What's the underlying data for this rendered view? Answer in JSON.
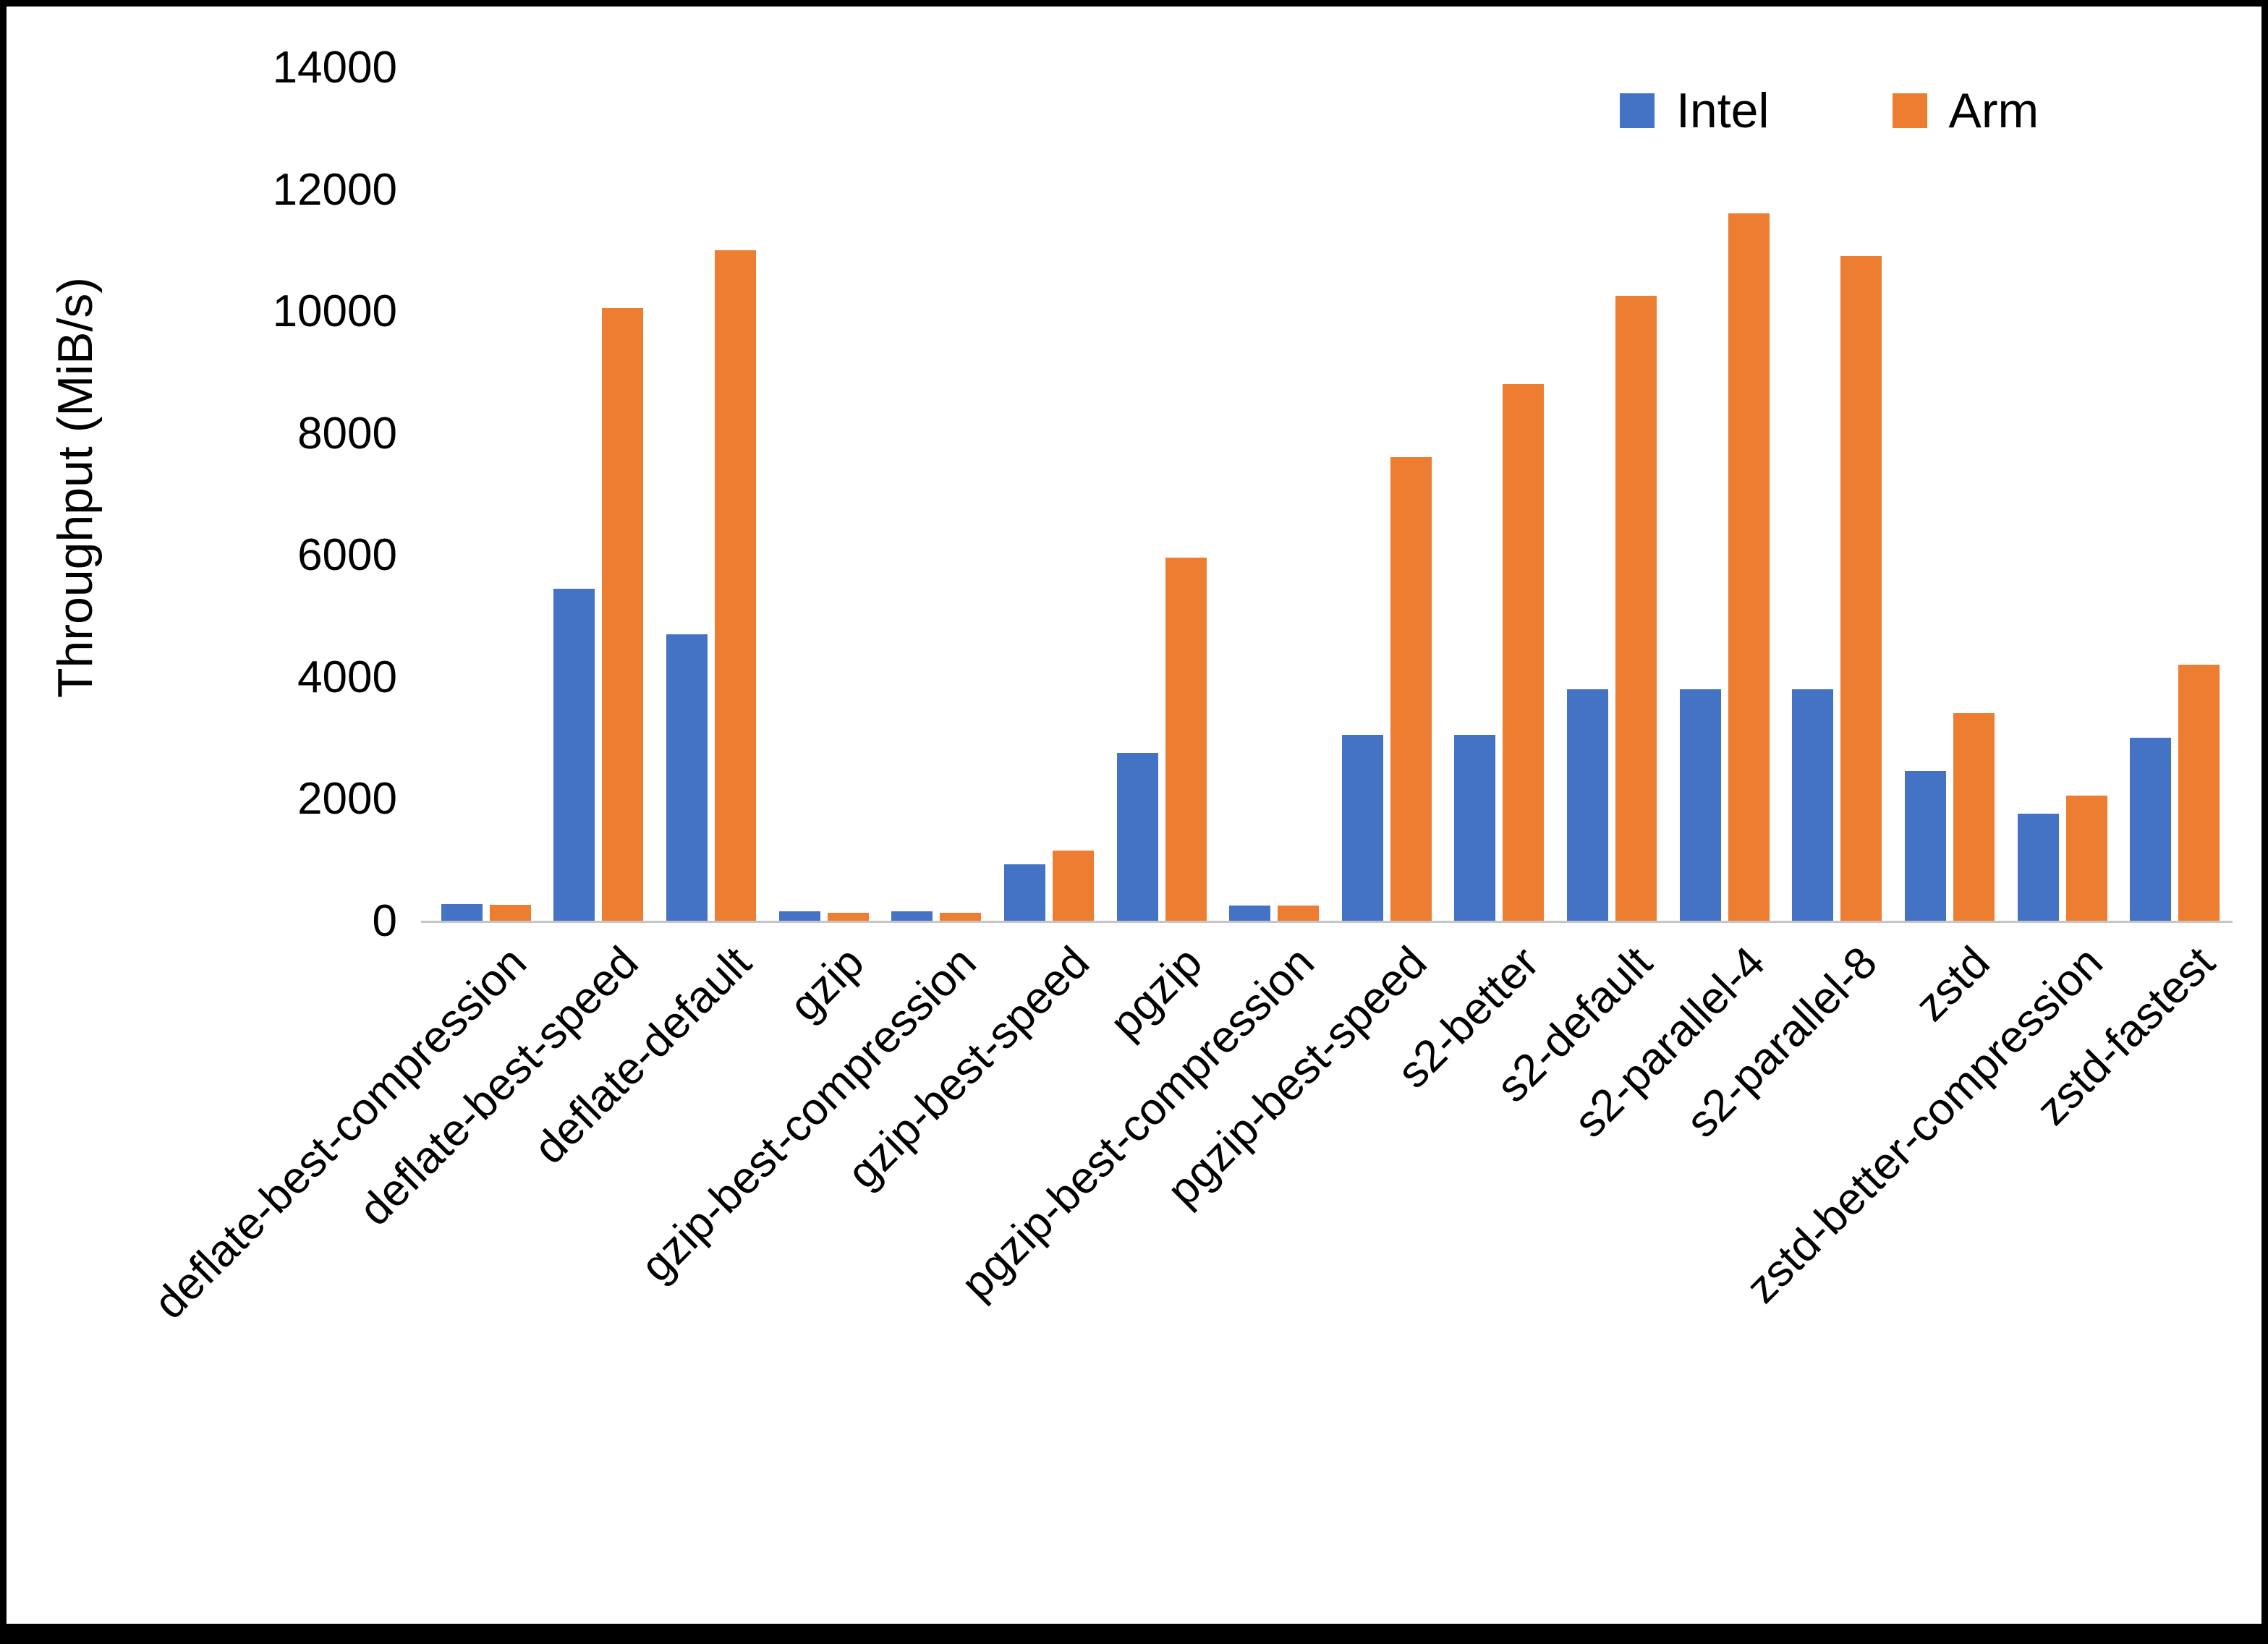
{
  "chart_data": {
    "type": "bar",
    "title": "",
    "xlabel": "",
    "ylabel": "Throughput (MiB/s)",
    "ylim": [
      0,
      14000
    ],
    "ytick_step": 2000,
    "grid": false,
    "legend_position": "top-right",
    "categories": [
      "deflate-best-compression",
      "deflate-best-speed",
      "deflate-default",
      "gzip",
      "gzip-best-compression",
      "gzip-best-speed",
      "pgzip",
      "pgzip-best-compression",
      "pgzip-best-speed",
      "s2-better",
      "s2-default",
      "s2-parallel-4",
      "s2-parallel-8",
      "zstd",
      "zstd-better-compression",
      "zstd-fastest"
    ],
    "series": [
      {
        "name": "Intel",
        "color": "#4472C4",
        "values": [
          270,
          5450,
          4700,
          160,
          160,
          930,
          2750,
          250,
          3050,
          3050,
          3800,
          3800,
          3800,
          2450,
          1750,
          3000
        ]
      },
      {
        "name": "Arm",
        "color": "#ED7D31",
        "values": [
          260,
          10050,
          11000,
          130,
          130,
          1150,
          5950,
          250,
          7600,
          8800,
          10250,
          11600,
          10900,
          3400,
          2050,
          4200
        ]
      }
    ]
  }
}
